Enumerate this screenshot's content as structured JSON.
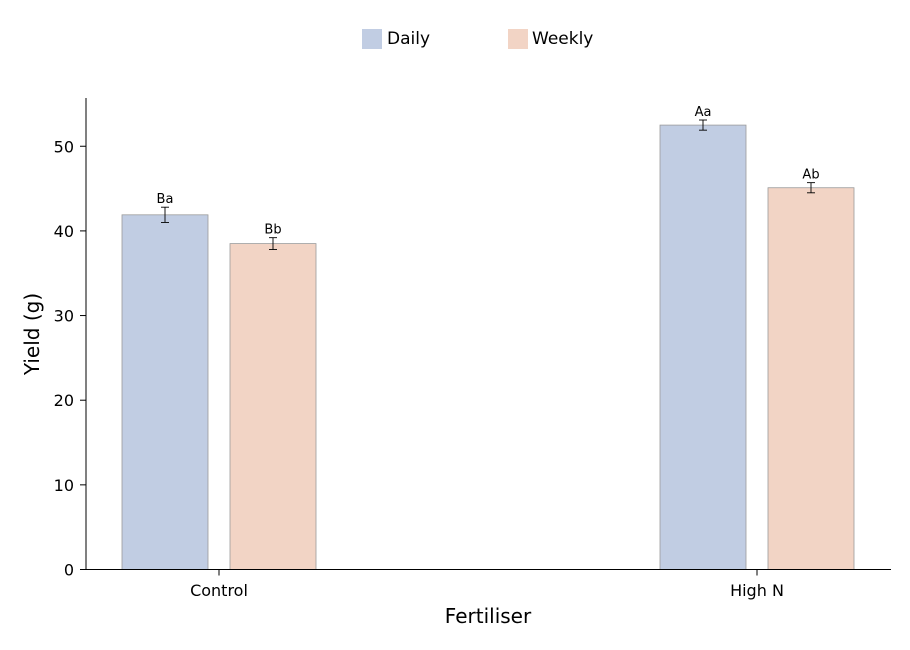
{
  "chart_data": {
    "type": "bar",
    "title": "",
    "xlabel": "Fertiliser",
    "ylabel": "Yield (g)",
    "categories": [
      "Control",
      "High N"
    ],
    "ylim": [
      0,
      55.7
    ],
    "yticks": [
      0,
      10,
      20,
      30,
      40,
      50
    ],
    "grid": false,
    "legend_position": "top-center",
    "series": [
      {
        "name": "Daily",
        "color": "#c1cde3",
        "values": [
          41.9,
          52.5
        ],
        "errors": [
          0.9,
          0.6
        ],
        "labels": [
          "Ba",
          "Aa"
        ]
      },
      {
        "name": "Weekly",
        "color": "#f2d4c5",
        "values": [
          38.5,
          45.1
        ],
        "errors": [
          0.7,
          0.6
        ],
        "labels": [
          "Bb",
          "Ab"
        ]
      }
    ]
  }
}
